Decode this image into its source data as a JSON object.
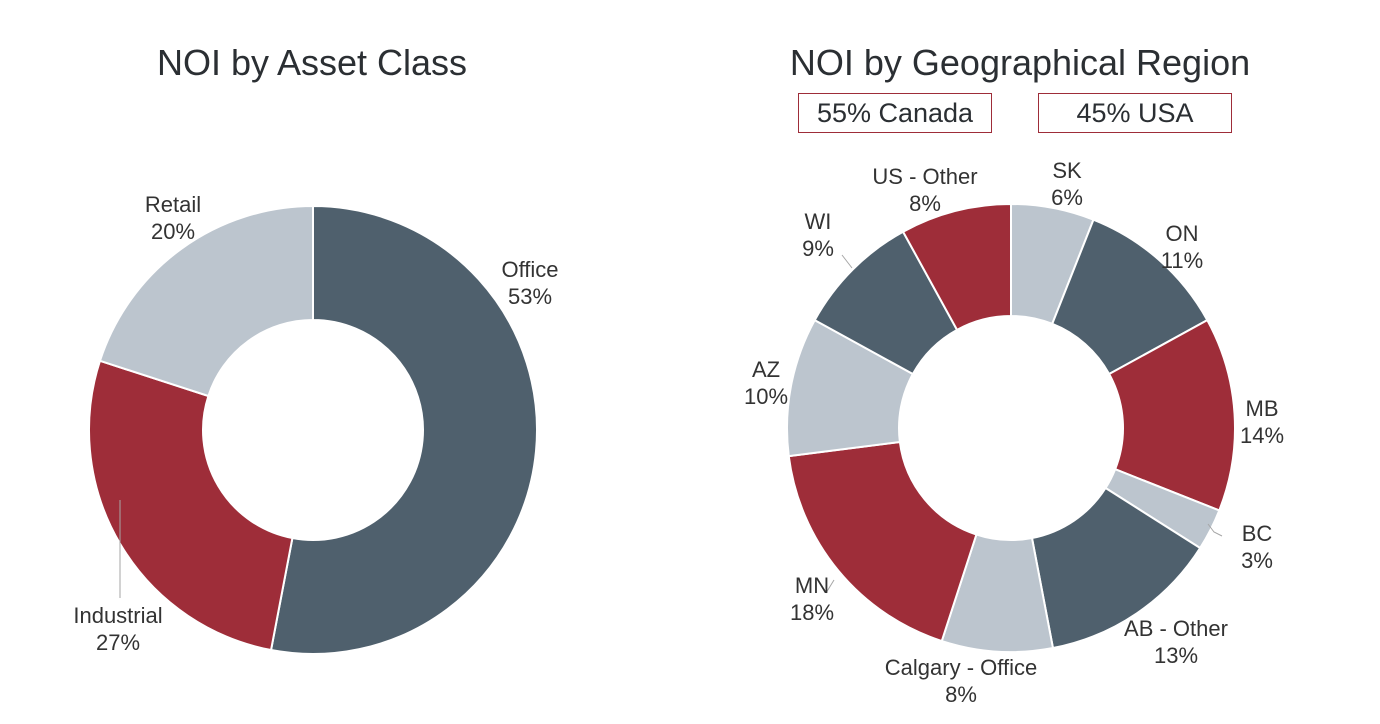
{
  "summary": {
    "canada": "55% Canada",
    "usa": "45% USA"
  },
  "chart_data": [
    {
      "type": "pie",
      "title": "NOI by Asset Class",
      "hole": true,
      "slices": [
        {
          "label": "Office",
          "value": 53,
          "display": "53%",
          "color": "#4f606d"
        },
        {
          "label": "Industrial",
          "value": 27,
          "display": "27%",
          "color": "#9e2d39"
        },
        {
          "label": "Retail",
          "value": 20,
          "display": "20%",
          "color": "#bcc5ce"
        }
      ]
    },
    {
      "type": "pie",
      "title": "NOI by Geographical Region",
      "hole": true,
      "slices": [
        {
          "label": "SK",
          "value": 6,
          "display": "6%",
          "color": "#bcc5ce"
        },
        {
          "label": "ON",
          "value": 11,
          "display": "11%",
          "color": "#4f606d"
        },
        {
          "label": "MB",
          "value": 14,
          "display": "14%",
          "color": "#9e2d39"
        },
        {
          "label": "BC",
          "value": 3,
          "display": "3%",
          "color": "#bcc5ce"
        },
        {
          "label": "AB - Other",
          "value": 13,
          "display": "13%",
          "color": "#4f606d"
        },
        {
          "label": "Calgary - Office",
          "value": 8,
          "display": "8%",
          "color": "#bcc5ce"
        },
        {
          "label": "MN",
          "value": 18,
          "display": "18%",
          "color": "#9e2d39"
        },
        {
          "label": "AZ",
          "value": 10,
          "display": "10%",
          "color": "#bcc5ce"
        },
        {
          "label": "WI",
          "value": 9,
          "display": "9%",
          "color": "#4f606d"
        },
        {
          "label": "US - Other",
          "value": 8,
          "display": "8%",
          "color": "#9e2d39"
        }
      ]
    }
  ]
}
